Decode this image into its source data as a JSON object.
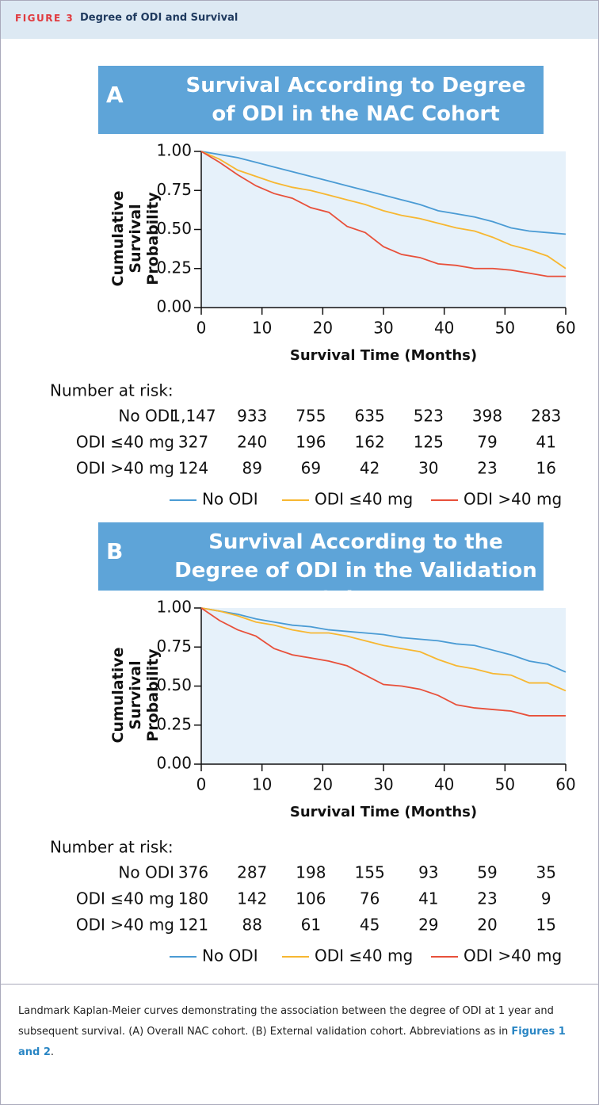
{
  "figure_label": "FIGURE 3",
  "figure_title": "Degree of ODI and Survival",
  "chart_data": [
    {
      "type": "line",
      "panel_label": "A",
      "title": "Survival According to Degree of ODI in the NAC Cohort",
      "x_label": "Survival Time (Months)",
      "y_label": "Cumulative Survival Probability",
      "xlim": [
        0,
        60
      ],
      "ylim": [
        0,
        1
      ],
      "xticks": [
        0,
        10,
        20,
        30,
        40,
        50,
        60
      ],
      "yticks": [
        {
          "value": 0,
          "label": "0.00"
        },
        {
          "value": 0.25,
          "label": "0.25"
        },
        {
          "value": 0.5,
          "label": "0.50"
        },
        {
          "value": 0.75,
          "label": "0.75"
        },
        {
          "value": 1,
          "label": "1.00"
        }
      ],
      "x": [
        0,
        3,
        6,
        9,
        12,
        15,
        18,
        21,
        24,
        27,
        30,
        33,
        36,
        39,
        42,
        45,
        48,
        51,
        54,
        57,
        60
      ],
      "series": [
        {
          "name": "No ODI",
          "color": "#4a9bd4",
          "values": [
            1.0,
            0.98,
            0.96,
            0.93,
            0.9,
            0.87,
            0.84,
            0.81,
            0.78,
            0.75,
            0.72,
            0.69,
            0.66,
            0.62,
            0.6,
            0.58,
            0.55,
            0.51,
            0.49,
            0.48,
            0.47
          ]
        },
        {
          "name": "ODI ≤40 mg",
          "color": "#f7b731",
          "values": [
            1.0,
            0.95,
            0.88,
            0.84,
            0.8,
            0.77,
            0.75,
            0.72,
            0.69,
            0.66,
            0.62,
            0.59,
            0.57,
            0.54,
            0.51,
            0.49,
            0.45,
            0.4,
            0.37,
            0.33,
            0.25
          ]
        },
        {
          "name": "ODI >40 mg",
          "color": "#e8503a",
          "values": [
            1.0,
            0.93,
            0.85,
            0.78,
            0.73,
            0.7,
            0.64,
            0.61,
            0.52,
            0.48,
            0.39,
            0.34,
            0.32,
            0.28,
            0.27,
            0.25,
            0.25,
            0.24,
            0.22,
            0.2,
            0.2
          ]
        }
      ],
      "risk_table": {
        "title": "Number at risk:",
        "rows": [
          {
            "name": "No ODI",
            "counts": [
              {
                "value": 1147,
                "label": "1,147"
              },
              933,
              755,
              635,
              523,
              398,
              283
            ]
          },
          {
            "name": "ODI ≤40 mg",
            "counts": [
              327,
              240,
              196,
              162,
              125,
              79,
              41
            ]
          },
          {
            "name": "ODI >40 mg",
            "counts": [
              124,
              89,
              69,
              42,
              30,
              23,
              16
            ]
          }
        ]
      }
    },
    {
      "type": "line",
      "panel_label": "B",
      "title": "Survival According to the Degree of ODI in the Validation Cohort",
      "x_label": "Survival Time (Months)",
      "y_label": "Cumulative Survival Probability",
      "xlim": [
        0,
        60
      ],
      "ylim": [
        0,
        1
      ],
      "xticks": [
        0,
        10,
        20,
        30,
        40,
        50,
        60
      ],
      "yticks": [
        {
          "value": 0,
          "label": "0.00"
        },
        {
          "value": 0.25,
          "label": "0.25"
        },
        {
          "value": 0.5,
          "label": "0.50"
        },
        {
          "value": 0.75,
          "label": "0.75"
        },
        {
          "value": 1,
          "label": "1.00"
        }
      ],
      "x": [
        0,
        3,
        6,
        9,
        12,
        15,
        18,
        21,
        24,
        27,
        30,
        33,
        36,
        39,
        42,
        45,
        48,
        51,
        54,
        57,
        60
      ],
      "series": [
        {
          "name": "No ODI",
          "color": "#4a9bd4",
          "values": [
            1.0,
            0.98,
            0.96,
            0.93,
            0.91,
            0.89,
            0.88,
            0.86,
            0.85,
            0.84,
            0.83,
            0.81,
            0.8,
            0.79,
            0.77,
            0.76,
            0.73,
            0.7,
            0.66,
            0.64,
            0.59
          ]
        },
        {
          "name": "ODI ≤40 mg",
          "color": "#f7b731",
          "values": [
            1.0,
            0.98,
            0.95,
            0.91,
            0.89,
            0.86,
            0.84,
            0.84,
            0.82,
            0.79,
            0.76,
            0.74,
            0.72,
            0.67,
            0.63,
            0.61,
            0.58,
            0.57,
            0.52,
            0.52,
            0.47
          ]
        },
        {
          "name": "ODI >40 mg",
          "color": "#e8503a",
          "values": [
            1.0,
            0.92,
            0.86,
            0.82,
            0.74,
            0.7,
            0.68,
            0.66,
            0.63,
            0.57,
            0.51,
            0.5,
            0.48,
            0.44,
            0.38,
            0.36,
            0.35,
            0.34,
            0.31,
            0.31,
            0.31
          ]
        }
      ],
      "risk_table": {
        "title": "Number at risk:",
        "rows": [
          {
            "name": "No ODI",
            "counts": [
              376,
              287,
              198,
              155,
              93,
              59,
              35
            ]
          },
          {
            "name": "ODI ≤40 mg",
            "counts": [
              180,
              142,
              106,
              76,
              41,
              23,
              9
            ]
          },
          {
            "name": "ODI >40 mg",
            "counts": [
              121,
              88,
              61,
              45,
              29,
              20,
              15
            ]
          }
        ]
      }
    }
  ],
  "caption": {
    "text": "Landmark Kaplan-Meier curves demonstrating the association between the degree of ODI at 1 year and subsequent survival. (A) Overall NAC cohort. (B) External validation cohort. Abbreviations as in ",
    "link": "Figures 1 and 2",
    "end": "."
  }
}
